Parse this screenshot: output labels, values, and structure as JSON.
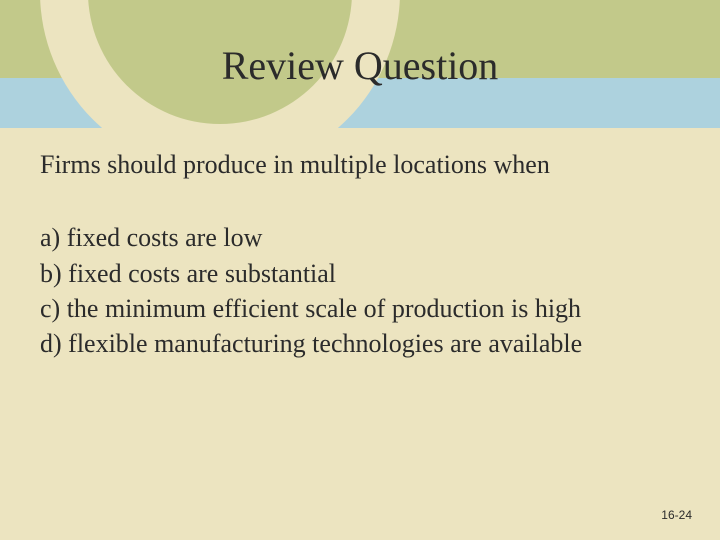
{
  "colors": {
    "bg_main": "#ece4c0",
    "bg_top_band": "#add2de",
    "bg_olive": "#c2c98a",
    "circle_outer": "#ece4c0",
    "circle_inner": "#c2c98a",
    "title_color": "#2b2b2b",
    "body_color": "#2b2b2b",
    "slidenum_color": "#2b2b2b"
  },
  "typography": {
    "title_fontsize": 40,
    "title_weight": "400",
    "body_fontsize": 26,
    "body_weight": "400",
    "body_lineheight": 1.28,
    "slidenum_fontsize": 12
  },
  "title": "Review Question",
  "question": "Firms should produce in multiple locations when",
  "options": [
    "a) fixed costs are low",
    "b) fixed costs are substantial",
    "c) the minimum efficient scale of production is high",
    "d) flexible manufacturing technologies are available"
  ],
  "slide_number": "16-24"
}
